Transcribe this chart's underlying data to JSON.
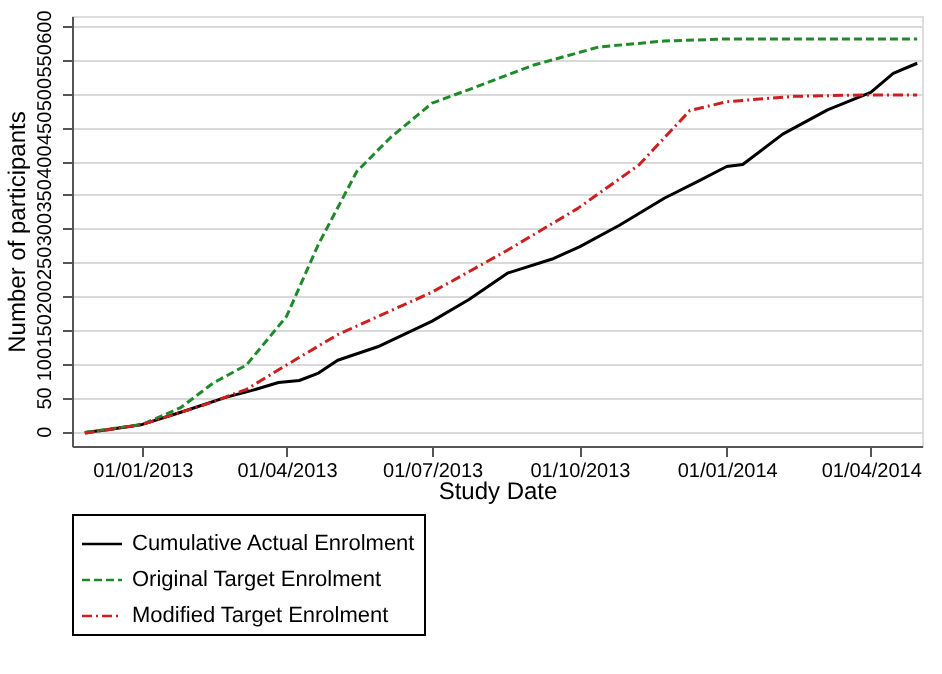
{
  "chart_data": {
    "type": "line",
    "xlabel": "Study Date",
    "ylabel": "Number of participants",
    "xlim": [
      "2012-11-18",
      "2014-05-03"
    ],
    "ylim": [
      -22,
      615
    ],
    "xticks": [
      {
        "value": "2013-01-01",
        "label": "01/01/2013"
      },
      {
        "value": "2013-04-01",
        "label": "01/04/2013"
      },
      {
        "value": "2013-07-01",
        "label": "01/07/2013"
      },
      {
        "value": "2013-10-01",
        "label": "01/10/2013"
      },
      {
        "value": "2014-01-01",
        "label": "01/01/2014"
      },
      {
        "value": "2014-04-01",
        "label": "01/04/2014"
      }
    ],
    "yticks": [
      0,
      50,
      100,
      150,
      200,
      250,
      300,
      350,
      400,
      450,
      500,
      550,
      600
    ],
    "grid": "y",
    "legend": "bottom",
    "series": [
      {
        "name": "Cumulative Actual Enrolment",
        "color": "#000000",
        "line_style": "solid",
        "x": [
          "2012-11-26",
          "2012-12-10",
          "2013-01-01",
          "2013-01-25",
          "2013-02-22",
          "2013-03-10",
          "2013-03-27",
          "2013-04-09",
          "2013-04-21",
          "2013-05-03",
          "2013-05-28",
          "2013-07-01",
          "2013-07-24",
          "2013-08-17",
          "2013-09-14",
          "2013-10-01",
          "2013-10-26",
          "2013-11-23",
          "2013-12-14",
          "2014-01-01",
          "2014-01-11",
          "2014-02-05",
          "2014-03-05",
          "2014-04-01",
          "2014-04-15",
          "2014-04-30"
        ],
        "values": [
          -2,
          2,
          10,
          28,
          50,
          60,
          72,
          75,
          86,
          105,
          125,
          163,
          195,
          234,
          255,
          273,
          305,
          345,
          370,
          392,
          395,
          440,
          476,
          502,
          530,
          545
        ]
      },
      {
        "name": "Original Target Enrolment",
        "color": "#1f8a2a",
        "line_style": "dashed",
        "x": [
          "2012-11-26",
          "2013-01-01",
          "2013-01-25",
          "2013-02-14",
          "2013-03-07",
          "2013-04-01",
          "2013-04-21",
          "2013-05-15",
          "2013-06-05",
          "2013-07-01",
          "2013-07-24",
          "2013-09-02",
          "2013-10-13",
          "2013-11-23",
          "2014-01-01",
          "2014-04-30"
        ],
        "values": [
          -2,
          10,
          35,
          71,
          98,
          170,
          277,
          385,
          435,
          486,
          506,
          542,
          569,
          578,
          581,
          581
        ]
      },
      {
        "name": "Modified Target Enrolment",
        "color": "#cc1f1f",
        "line_style": "dashdot",
        "x": [
          "2012-11-26",
          "2013-01-01",
          "2013-02-10",
          "2013-03-07",
          "2013-04-01",
          "2013-05-03",
          "2013-07-01",
          "2013-08-17",
          "2013-09-30",
          "2013-11-07",
          "2013-12-09",
          "2014-01-01",
          "2014-02-12",
          "2014-03-26",
          "2014-04-30"
        ],
        "values": [
          -3,
          10,
          40,
          62,
          98,
          143,
          206,
          268,
          330,
          394,
          475,
          488,
          496,
          498,
          498
        ]
      }
    ]
  }
}
